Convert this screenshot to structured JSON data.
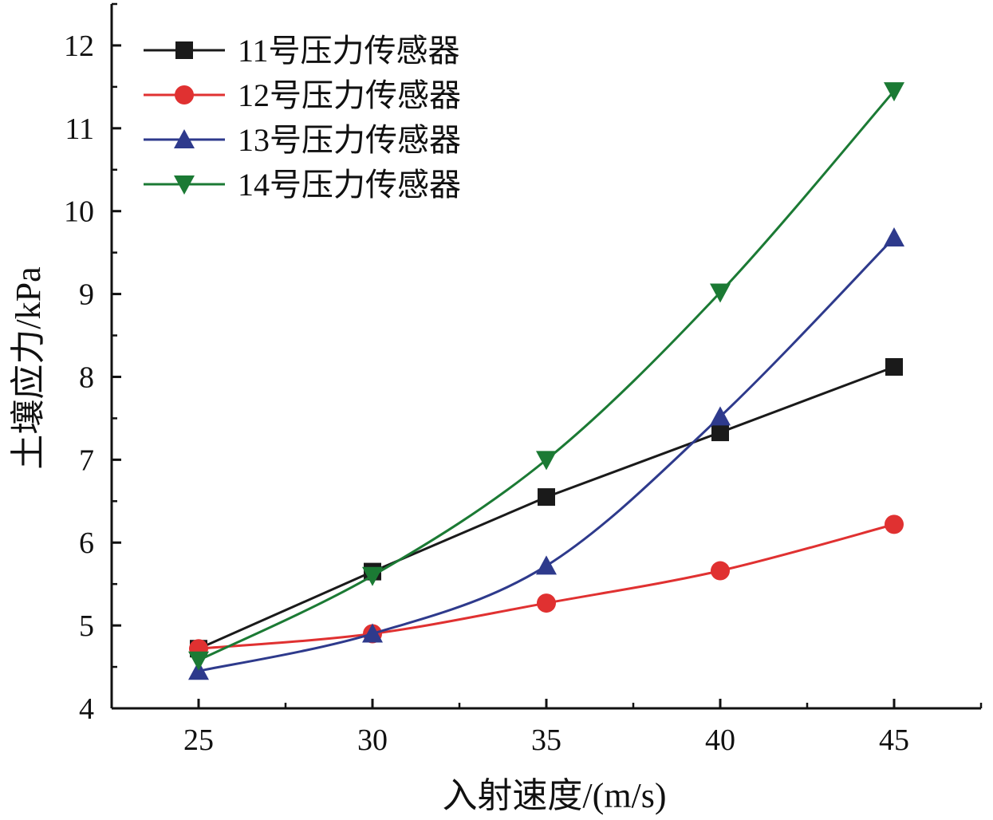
{
  "chart_data": {
    "type": "line",
    "xlabel": "入射速度/(m/s)",
    "ylabel": "土壤应力/kPa",
    "xlim": [
      22.5,
      47.5
    ],
    "ylim": [
      4,
      12.5
    ],
    "xticks": [
      25,
      30,
      35,
      40,
      45
    ],
    "yticks": [
      4,
      5,
      6,
      7,
      8,
      9,
      10,
      11,
      12
    ],
    "x": [
      25,
      30,
      35,
      40,
      45
    ],
    "grid": false,
    "legend_position": "top-left",
    "series": [
      {
        "name": "11号压力传感器",
        "marker": "square",
        "color": "#1a1a1a",
        "smooth": false,
        "values": [
          4.72,
          5.65,
          6.55,
          7.33,
          8.12
        ]
      },
      {
        "name": "12号压力传感器",
        "marker": "circle",
        "color": "#e03131",
        "smooth": true,
        "values": [
          4.72,
          4.9,
          5.27,
          5.66,
          6.22
        ]
      },
      {
        "name": "13号压力传感器",
        "marker": "triangle-up",
        "color": "#2e3a8c",
        "smooth": true,
        "values": [
          4.45,
          4.9,
          5.72,
          7.52,
          9.68
        ]
      },
      {
        "name": "14号压力传感器",
        "marker": "triangle-down",
        "color": "#1b7a34",
        "smooth": true,
        "values": [
          4.58,
          5.6,
          7.0,
          9.02,
          11.45
        ]
      }
    ]
  }
}
